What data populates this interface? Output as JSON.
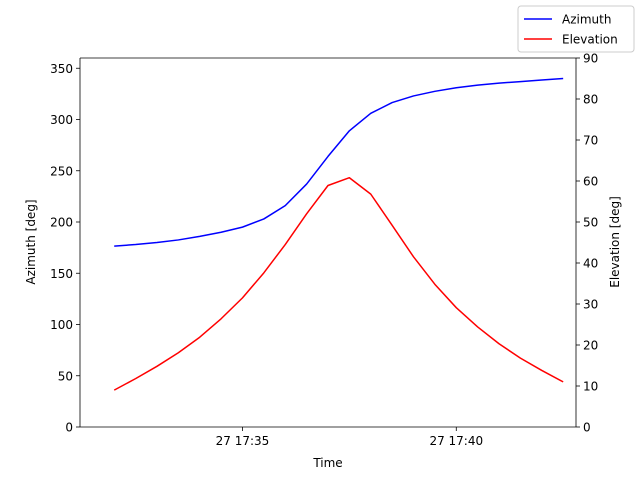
{
  "chart_data": {
    "type": "line",
    "xlabel": "Time",
    "ylabel_left": "Azimuth [deg]",
    "ylabel_right": "Elevation [deg]",
    "x_range_minutes": [
      -0.8,
      10.8
    ],
    "x_ticks": [
      {
        "minute": 3,
        "label": "27 17:35"
      },
      {
        "minute": 8,
        "label": "27 17:40"
      }
    ],
    "ylim_left": [
      0,
      360
    ],
    "yticks_left": [
      0,
      50,
      100,
      150,
      200,
      250,
      300,
      350
    ],
    "ylim_right": [
      0,
      90
    ],
    "yticks_right": [
      0,
      10,
      20,
      30,
      40,
      50,
      60,
      70,
      80,
      90
    ],
    "legend": {
      "position": "top-right"
    },
    "series": [
      {
        "name": "Azimuth",
        "axis": "left",
        "color": "#0000ff",
        "x_minutes": [
          0,
          0.5,
          1,
          1.5,
          2,
          2.5,
          3,
          3.5,
          4,
          4.5,
          5,
          5.5,
          6,
          6.5,
          7,
          7.5,
          8,
          8.5,
          9,
          9.5,
          10,
          10.5
        ],
        "values": [
          176.5,
          178,
          180,
          182.5,
          186,
          190,
          195,
          203,
          216,
          237,
          264,
          289,
          306,
          316.5,
          323,
          327.5,
          331,
          333.5,
          335.5,
          337,
          338.5,
          340
        ]
      },
      {
        "name": "Elevation",
        "axis": "right",
        "color": "#ff0000",
        "x_minutes": [
          0,
          0.5,
          1,
          1.5,
          2,
          2.5,
          3,
          3.5,
          4,
          4.5,
          5,
          5.5,
          6,
          6.5,
          7,
          7.5,
          8,
          8.5,
          9,
          9.5,
          10,
          10.5
        ],
        "values": [
          9,
          11.8,
          14.8,
          18.1,
          21.9,
          26.4,
          31.5,
          37.6,
          44.5,
          52.0,
          58.9,
          60.8,
          56.8,
          49.2,
          41.5,
          34.8,
          29.1,
          24.4,
          20.3,
          16.8,
          13.8,
          11.0
        ]
      }
    ]
  }
}
